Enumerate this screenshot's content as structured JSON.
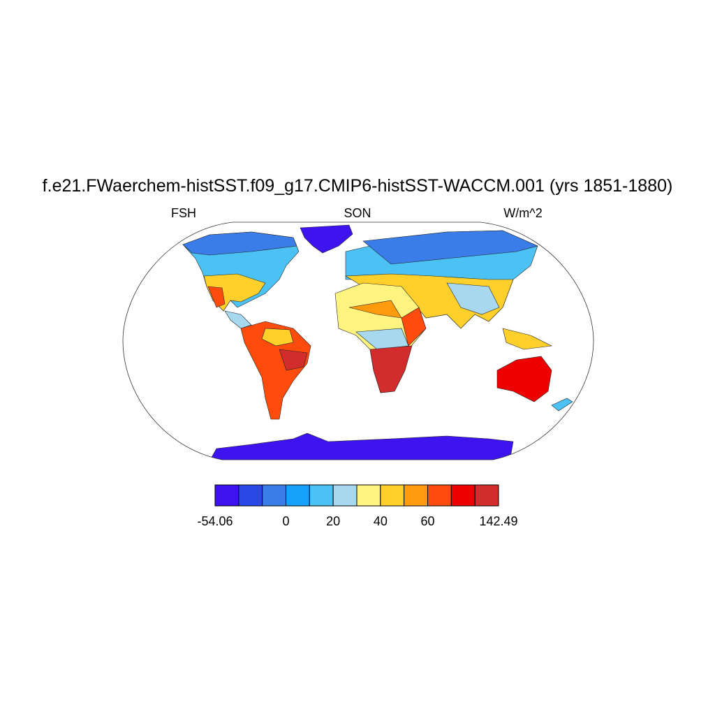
{
  "header": {
    "title": "f.e21.FWaerchem-histSST.f09_g17.CMIP6-histSST-WACCM.001 (yrs 1851-1880)",
    "left": "FSH",
    "center": "SON",
    "right": "W/m^2"
  },
  "colorbar": {
    "colors": [
      "#3d14f0",
      "#2a48e6",
      "#3a7ce8",
      "#16a2fc",
      "#4cc2f4",
      "#a8d8f0",
      "#fff480",
      "#ffd02c",
      "#ff9a0c",
      "#ff4c0c",
      "#ee0000",
      "#d22c2c"
    ],
    "labels": [
      "-54.06",
      "0",
      "20",
      "40",
      "60",
      "142.49"
    ]
  }
}
